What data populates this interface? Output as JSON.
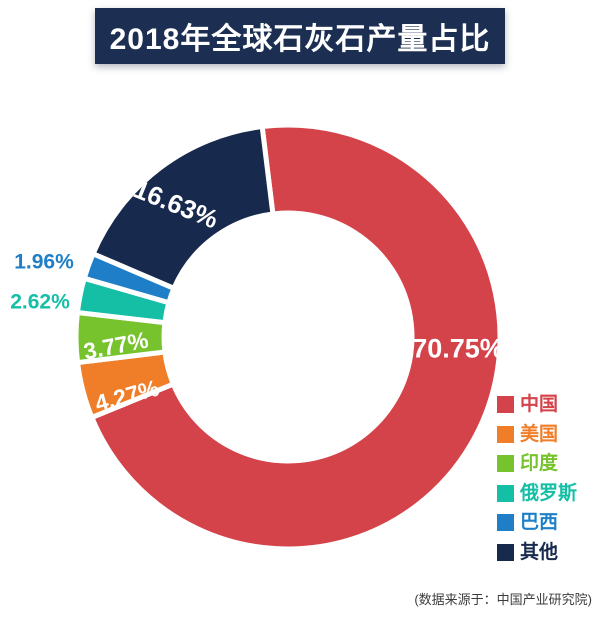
{
  "title": "2018年全球石灰石产量占比",
  "source_note": "(数据来源于：中国产业研究院)",
  "chart_data": {
    "type": "pie",
    "subtype": "donut",
    "title": "2018年全球石灰石产量占比",
    "unit": "%",
    "legend_position": "right",
    "hole_ratio": 0.58,
    "categories": [
      "中国",
      "美国",
      "印度",
      "俄罗斯",
      "巴西",
      "其他"
    ],
    "values": [
      70.75,
      4.27,
      3.77,
      2.62,
      1.96,
      16.63
    ],
    "labels": [
      "70.75%",
      "4.27%",
      "3.77%",
      "2.62%",
      "1.96%",
      "16.63%"
    ],
    "colors": [
      "#d5434a",
      "#f07d28",
      "#76c32d",
      "#14bfa6",
      "#1e7fc8",
      "#172a4d"
    ],
    "banner_color": "#1c2f52",
    "gap_color": "#ffffff"
  }
}
